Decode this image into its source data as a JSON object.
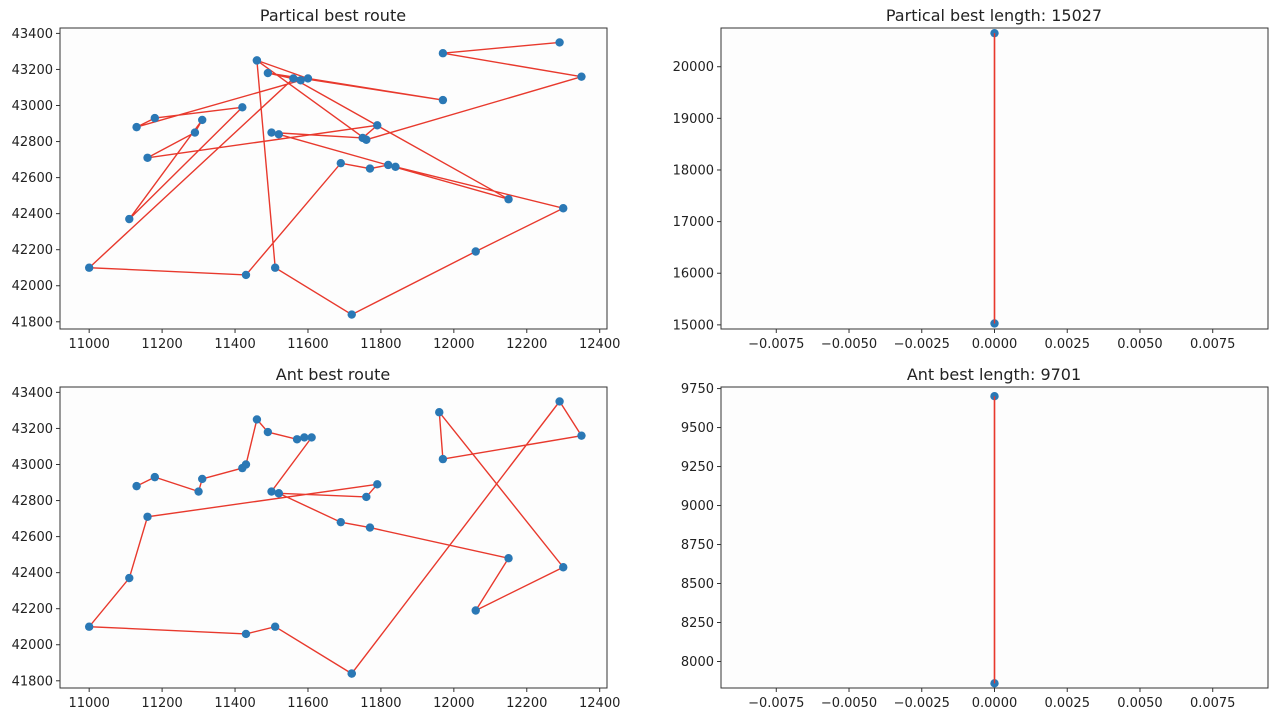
{
  "colors": {
    "route_line": "#e8392d",
    "point": "#2a78b5",
    "axes": "#333333",
    "background": "#fdfdfd"
  },
  "chart_data": [
    {
      "type": "line",
      "title": "Partical best route",
      "xlim": [
        10920,
        12420
      ],
      "ylim": [
        41760,
        43430
      ],
      "xticks": [
        11000,
        11200,
        11400,
        11600,
        11800,
        12000,
        12200,
        12400
      ],
      "yticks": [
        41800,
        42000,
        42200,
        42400,
        42600,
        42800,
        43000,
        43200,
        43400
      ],
      "x": [
        12290,
        11970,
        12350,
        11760,
        11460,
        11600,
        11970,
        11490,
        11580,
        11130,
        11180,
        11420,
        11110,
        11310,
        11290,
        11160,
        11790,
        11750,
        11500,
        11520,
        12150,
        11560,
        11000,
        11430,
        11690,
        11770,
        11820,
        11840,
        12300,
        12060,
        11720,
        11510,
        11460
      ],
      "y": [
        43350,
        43290,
        43160,
        42810,
        43250,
        43150,
        43030,
        43180,
        43140,
        42880,
        42930,
        42990,
        42370,
        42920,
        42850,
        42710,
        42890,
        42820,
        42850,
        42840,
        42480,
        43150,
        42100,
        42060,
        42680,
        42650,
        42670,
        42660,
        42430,
        42190,
        41840,
        42100,
        43250
      ]
    },
    {
      "type": "line",
      "title": "Partical best length: 15027",
      "xlim": [
        -0.0094,
        0.0094
      ],
      "ylim": [
        14920,
        20750
      ],
      "xticks": [
        "−0.0075",
        "−0.0050",
        "−0.0025",
        "0.0000",
        "0.0025",
        "0.0050",
        "0.0075"
      ],
      "xtick_values": [
        -0.0075,
        -0.005,
        -0.0025,
        0,
        0.0025,
        0.005,
        0.0075
      ],
      "yticks": [
        15000,
        16000,
        17000,
        18000,
        19000,
        20000
      ],
      "x": [
        0,
        0
      ],
      "y": [
        20650,
        15027
      ]
    },
    {
      "type": "line",
      "title": "Ant best route",
      "xlim": [
        10920,
        12420
      ],
      "ylim": [
        41760,
        43430
      ],
      "xticks": [
        11000,
        11200,
        11400,
        11600,
        11800,
        12000,
        12200,
        12400
      ],
      "yticks": [
        41800,
        42000,
        42200,
        42400,
        42600,
        42800,
        43000,
        43200,
        43400
      ],
      "x": [
        11720,
        12290,
        12350,
        11970,
        11960,
        12300,
        12060,
        12150,
        11770,
        11690,
        11520,
        11760,
        11790,
        11160,
        11110,
        11000,
        11430,
        11510,
        11720
      ],
      "y": [
        41840,
        43350,
        43160,
        43030,
        43290,
        42430,
        42190,
        42480,
        42650,
        42680,
        42840,
        42820,
        42890,
        42710,
        42370,
        42100,
        42060,
        42100,
        41840
      ]
    },
    {
      "type": "line",
      "title": "Ant best length: 9701",
      "xlim": [
        -0.0094,
        0.0094
      ],
      "ylim": [
        7830,
        9760
      ],
      "xticks": [
        "−0.0075",
        "−0.0050",
        "−0.0025",
        "0.0000",
        "0.0025",
        "0.0050",
        "0.0075"
      ],
      "xtick_values": [
        -0.0075,
        -0.005,
        -0.0025,
        0,
        0.0025,
        0.005,
        0.0075
      ],
      "yticks": [
        8000,
        8250,
        8500,
        8750,
        9000,
        9250,
        9500,
        9750
      ],
      "x": [
        0,
        0
      ],
      "y": [
        9701,
        7860
      ]
    }
  ],
  "ant_route_extra_path": {
    "x": [
      11130,
      11180,
      11300,
      11310,
      11420,
      11430,
      11460,
      11490,
      11570,
      11590,
      11610,
      11500,
      11520
    ],
    "y": [
      42880,
      42930,
      42850,
      42920,
      42980,
      43000,
      43250,
      43180,
      43140,
      43150,
      43150,
      42850,
      42840
    ]
  }
}
